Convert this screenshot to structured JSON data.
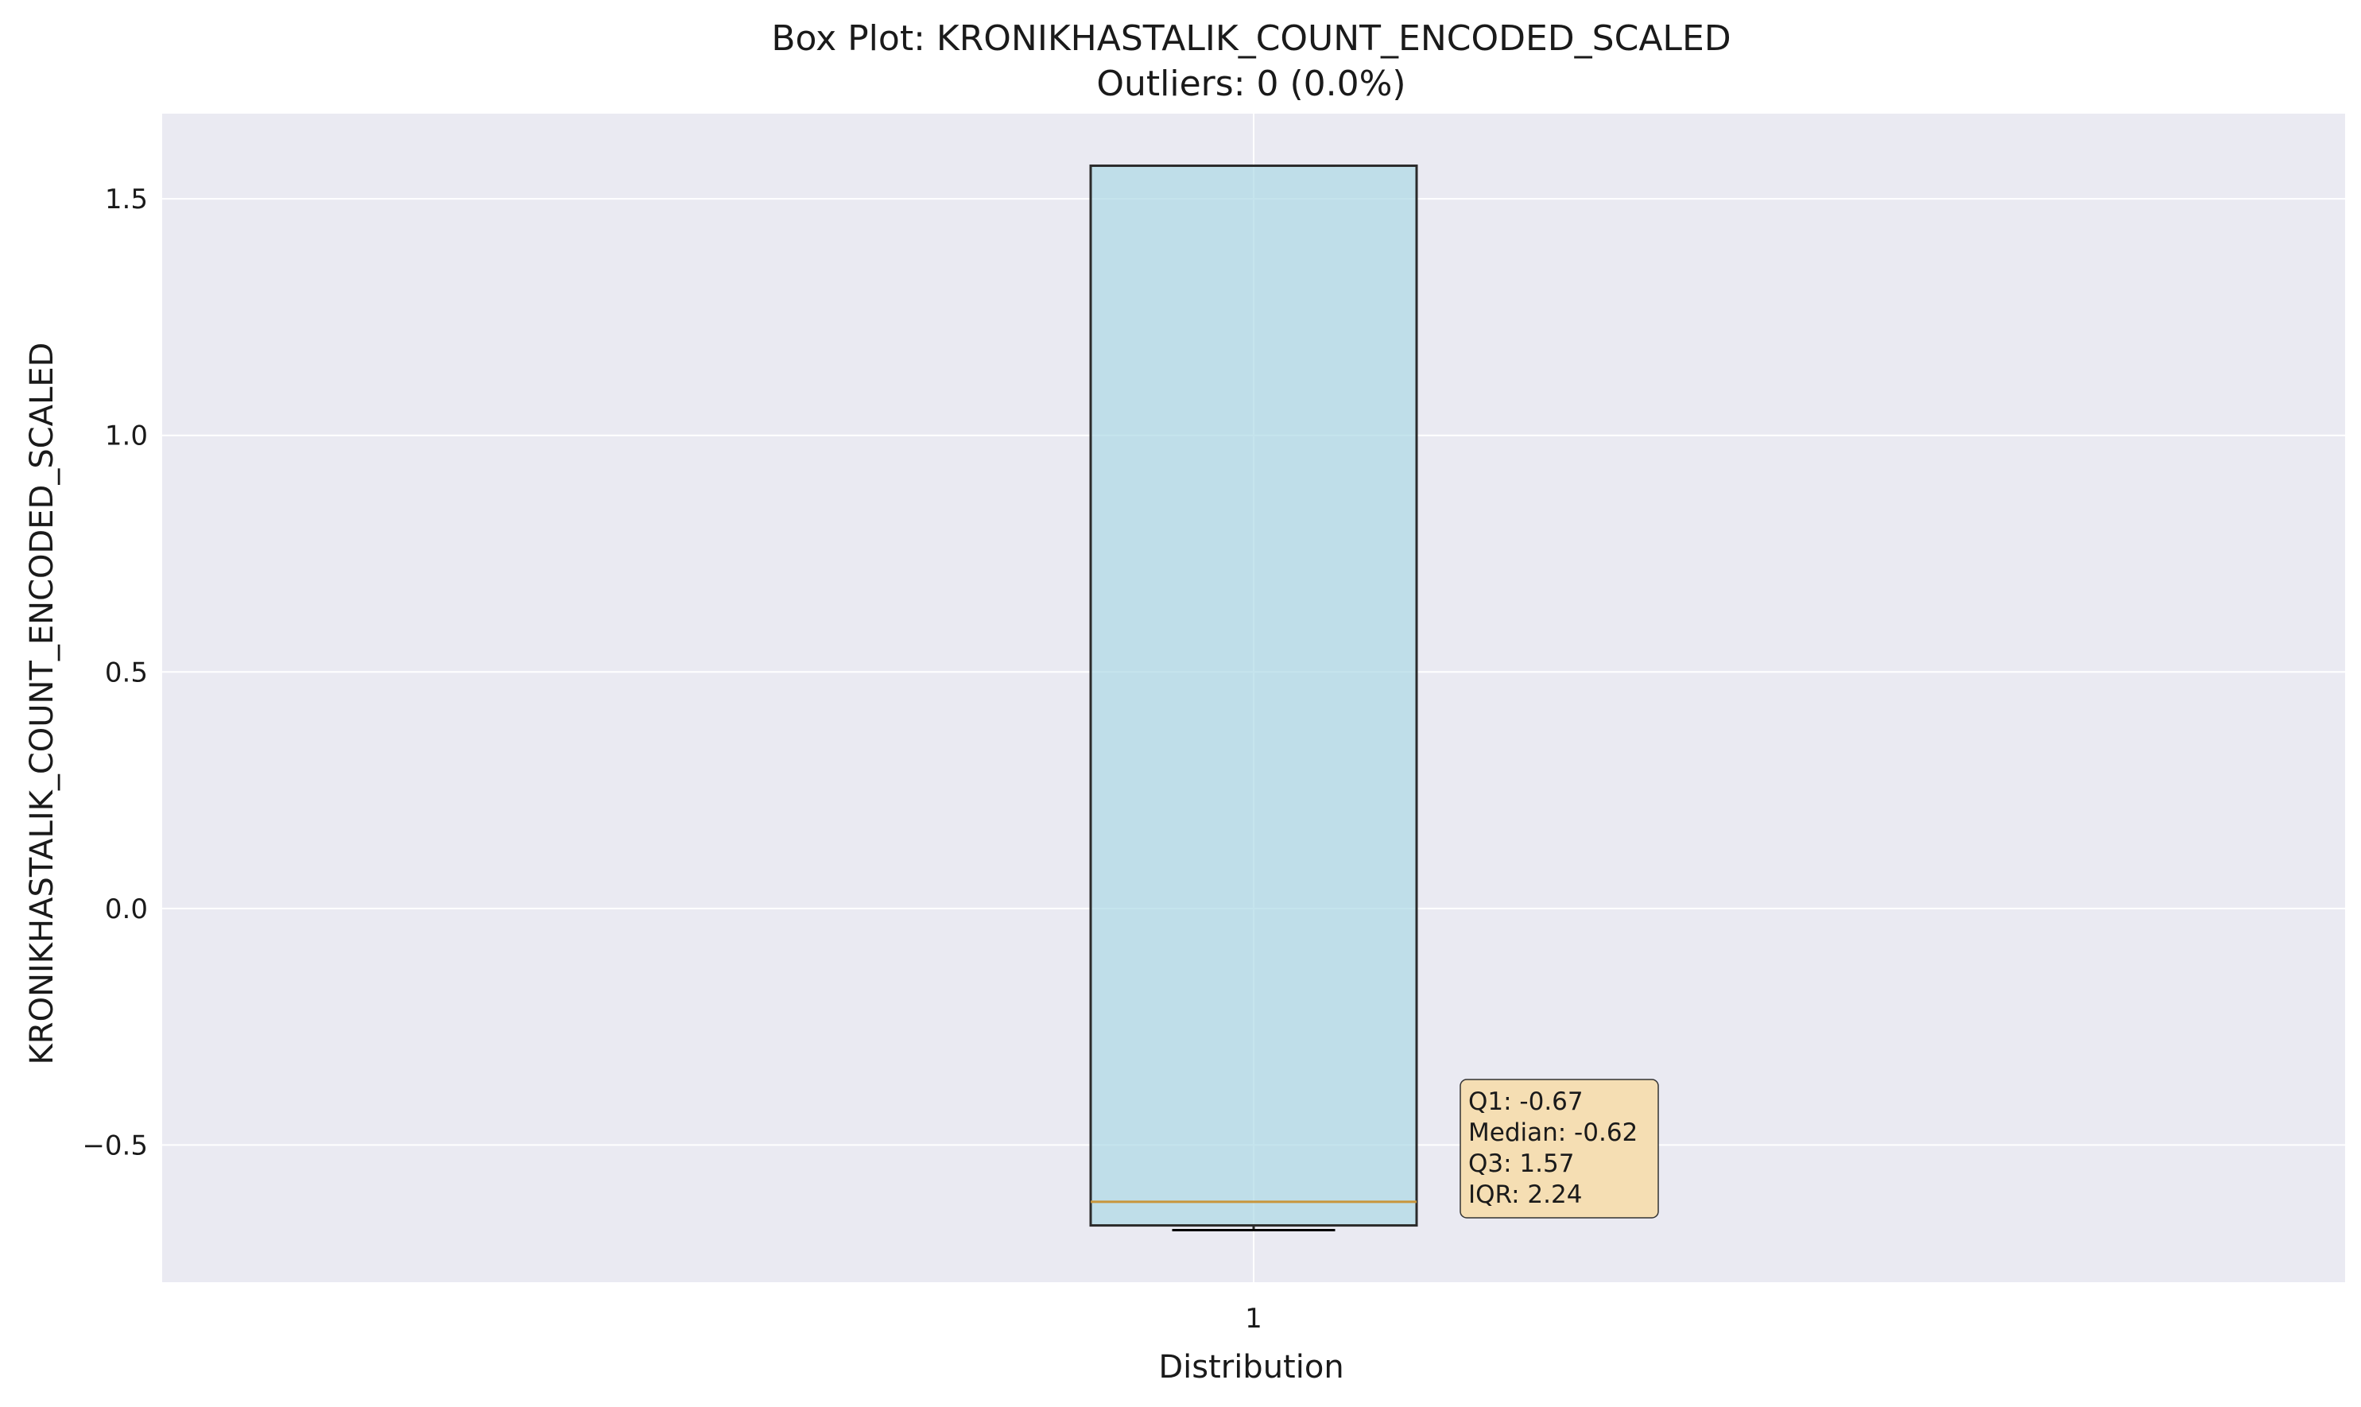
{
  "chart_data": {
    "type": "box",
    "title": "Box Plot: KRONIKHASTALIK_COUNT_ENCODED_SCALED",
    "subtitle": "Outliers: 0 (0.0%)",
    "xlabel": "Distribution",
    "ylabel": "KRONIKHASTALIK_COUNT_ENCODED_SCALED",
    "categories": [
      "1"
    ],
    "ylim": [
      -0.79,
      1.68
    ],
    "yticks": [
      -0.5,
      0.0,
      0.5,
      1.0,
      1.5
    ],
    "ytick_labels": [
      "−0.5",
      "0.0",
      "0.5",
      "1.0",
      "1.5"
    ],
    "grid": true,
    "box": {
      "whisker_low": -0.68,
      "q1": -0.67,
      "median": -0.62,
      "q3": 1.57,
      "whisker_high": 1.57,
      "outliers": []
    },
    "stats_lines": [
      "Q1: -0.67",
      "Median: -0.62",
      "Q3: 1.57",
      "IQR: 2.24"
    ],
    "colors": {
      "plot_background": "#eaeaf2",
      "grid": "#ffffff",
      "box_fill": "#add8e6",
      "box_edge": "#2b2b2b",
      "median": "#c8963c",
      "stats_box_fill": "#f5deb3"
    }
  }
}
